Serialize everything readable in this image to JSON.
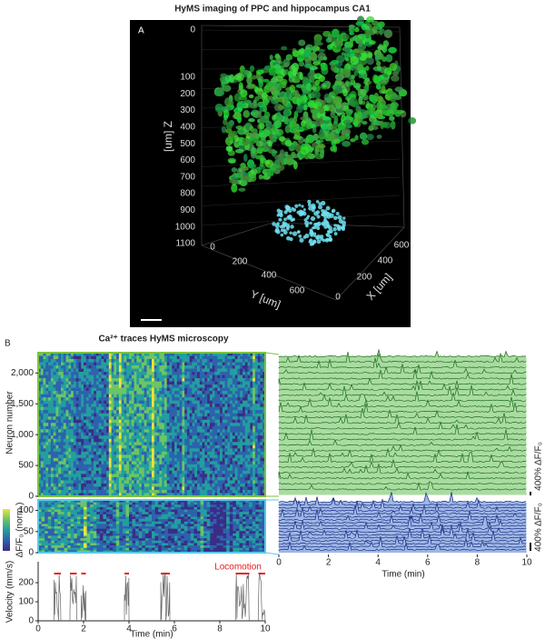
{
  "panel_a": {
    "title": "HyMS imaging of PPC and hippocampus CA1",
    "label": "A",
    "z_label": "[um] Z",
    "y_label": "Y [um]",
    "x_label": "X [um]",
    "z_ticks": [
      "0",
      "100",
      "200",
      "300",
      "400",
      "500",
      "600",
      "700",
      "800",
      "900",
      "1000",
      "1100"
    ],
    "y_ticks": [
      "0",
      "200",
      "400",
      "600"
    ],
    "x_ticks": [
      "0",
      "200",
      "400",
      "600"
    ]
  },
  "panel_b": {
    "label": "B",
    "title": "Ca²⁺ traces HyMS microscopy"
  },
  "chart_data": [
    {
      "type": "heatmap",
      "ylabel": "Neuron number",
      "ylim": [
        0,
        2330
      ],
      "yticks": [
        0,
        500,
        {
          "value": 1000,
          "label": "1,000"
        },
        {
          "value": 1500,
          "label": "1,500"
        },
        {
          "value": 2000,
          "label": "2,000"
        }
      ],
      "border_color": "#7dc242"
    },
    {
      "type": "heatmap",
      "ylim": [
        0,
        125
      ],
      "yticks": [
        0,
        50,
        100
      ],
      "border_color": "#5bc8e8",
      "colorbar_label": "ΔF/F₀ (norm.)"
    },
    {
      "type": "traces",
      "xlabel": "Time (min)",
      "xlim": [
        0,
        10
      ],
      "xticks": [
        0,
        2,
        4,
        6,
        8,
        10
      ],
      "scale_labels": [
        "400% ΔF/F₀",
        "400% ΔF/F₀"
      ],
      "colors": [
        "#1e6b1e",
        "#1a2a80"
      ]
    },
    {
      "type": "line",
      "ylabel": "Velocity (mm/s)",
      "xlabel": "Time (min)",
      "xlim": [
        0,
        10
      ],
      "xticks": [
        0,
        2,
        4,
        6,
        8,
        10
      ],
      "ylim": [
        0,
        310
      ],
      "yticks": [
        0,
        100,
        200
      ],
      "color": "#666666",
      "annotation": "Locomotion",
      "annotation_color": "#e41a1c",
      "locomotion_bouts": [
        [
          0.7,
          1.0
        ],
        [
          1.4,
          1.7
        ],
        [
          1.9,
          2.1
        ],
        [
          3.8,
          4.0
        ],
        [
          5.4,
          5.8
        ],
        [
          8.7,
          9.3
        ],
        [
          9.7,
          10.0
        ]
      ]
    }
  ]
}
